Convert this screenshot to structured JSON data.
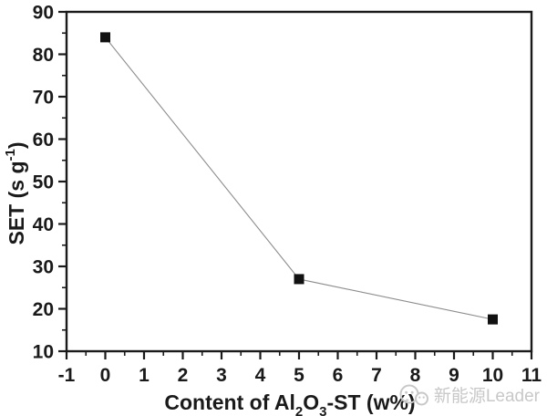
{
  "figure": {
    "background": "#ffffff",
    "axis_color": "#1a1a1a",
    "line_color": "#8c8c8c",
    "marker_color": "#111111",
    "tick_text_color": "#1a1a1a",
    "watermark_color": "#c8c8c8"
  },
  "chart_data": {
    "type": "scatter",
    "title": "",
    "xlabel": "Content of Al2O3-ST (w%)",
    "ylabel": "SET (s g-1)",
    "xlabel_rich": [
      {
        "t": "Content of Al"
      },
      {
        "t": "2",
        "sub": true
      },
      {
        "t": "O"
      },
      {
        "t": "3",
        "sub": true
      },
      {
        "t": "-ST (w%)"
      }
    ],
    "ylabel_rich": [
      {
        "t": "SET (s g"
      },
      {
        "t": "-1",
        "sup": true
      },
      {
        "t": ")"
      }
    ],
    "xlim": [
      -1,
      11
    ],
    "ylim": [
      10,
      90
    ],
    "x_major_ticks": [
      -1,
      0,
      1,
      2,
      3,
      4,
      5,
      6,
      7,
      8,
      9,
      10,
      11
    ],
    "x_minor_step": 0.5,
    "y_major_ticks": [
      10,
      20,
      30,
      40,
      50,
      60,
      70,
      80,
      90
    ],
    "y_minor_step": 5,
    "grid": false,
    "legend": "none",
    "series": [
      {
        "name": "SET",
        "marker": "filled-square",
        "line_style": "solid-thin-gray",
        "x": [
          0,
          5,
          10
        ],
        "y": [
          84,
          27,
          17.5
        ]
      }
    ]
  },
  "watermark": {
    "text": "新能源Leader",
    "icon": "wechat-icon"
  }
}
